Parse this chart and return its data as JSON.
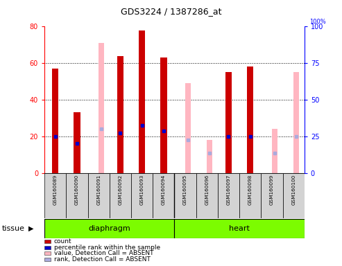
{
  "title": "GDS3224 / 1387286_at",
  "samples": [
    "GSM160089",
    "GSM160090",
    "GSM160091",
    "GSM160092",
    "GSM160093",
    "GSM160094",
    "GSM160095",
    "GSM160096",
    "GSM160097",
    "GSM160098",
    "GSM160099",
    "GSM160100"
  ],
  "tissue_groups": [
    {
      "label": "diaphragm",
      "start": 0,
      "end": 6,
      "color": "#7CFC00"
    },
    {
      "label": "heart",
      "start": 6,
      "end": 12,
      "color": "#7CFC00"
    }
  ],
  "red_bars": [
    57,
    33,
    0,
    64,
    78,
    63,
    0,
    0,
    55,
    58,
    0,
    0
  ],
  "pink_bars": [
    0,
    0,
    71,
    0,
    0,
    0,
    49,
    18,
    0,
    0,
    24,
    55
  ],
  "blue_dots_left": [
    20,
    16,
    0,
    22,
    26,
    23,
    0,
    0,
    20,
    20,
    0,
    0
  ],
  "light_blue_dots_left": [
    0,
    0,
    24,
    0,
    0,
    0,
    18,
    11,
    0,
    0,
    11,
    20
  ],
  "ylim_left": [
    0,
    80
  ],
  "ylim_right": [
    0,
    100
  ],
  "yticks_left": [
    0,
    20,
    40,
    60,
    80
  ],
  "yticks_right": [
    0,
    25,
    50,
    75,
    100
  ],
  "red_color": "#CC0000",
  "pink_color": "#FFB6C1",
  "blue_color": "#0000CC",
  "light_blue_color": "#AAAADD",
  "tissue_label": "tissue",
  "legend_items": [
    {
      "color": "#CC0000",
      "label": "count",
      "marker": "s"
    },
    {
      "color": "#0000CC",
      "label": "percentile rank within the sample",
      "marker": "s"
    },
    {
      "color": "#FFB6C1",
      "label": "value, Detection Call = ABSENT",
      "marker": "s"
    },
    {
      "color": "#AAAADD",
      "label": "rank, Detection Call = ABSENT",
      "marker": "s"
    }
  ]
}
